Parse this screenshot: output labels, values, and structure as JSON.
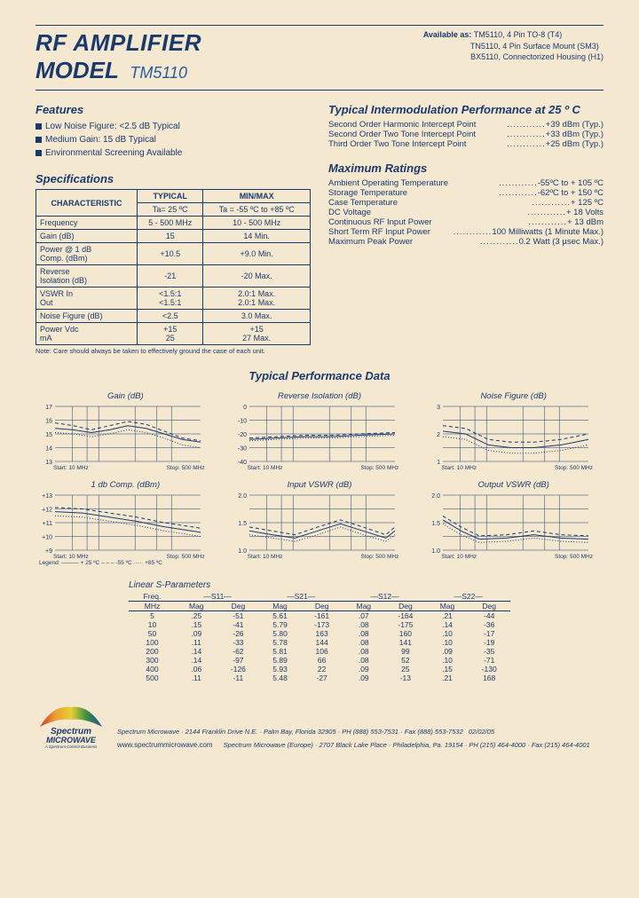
{
  "title_l1": "RF AMPLIFIER",
  "title_l2": "MODEL",
  "model": "TM5110",
  "available_label": "Available as:",
  "available": [
    "TM5110, 4 Pin TO-8 (T4)",
    "TN5110, 4 Pin Surface Mount (SM3)",
    "BX5110, Connectorized Housing (H1)"
  ],
  "features_head": "Features",
  "features": [
    "Low Noise Figure: <2.5 dB Typical",
    "Medium Gain: 15 dB Typical",
    "Environmental Screening Available"
  ],
  "specs_head": "Specifications",
  "spec_headers": [
    "CHARACTERISTIC",
    "TYPICAL",
    "MIN/MAX"
  ],
  "spec_sub": [
    "",
    "Ta= 25 ºC",
    "Ta = -55 ºC to +85 ºC"
  ],
  "spec_rows": [
    [
      "Frequency",
      "5 - 500 MHz",
      "10 - 500 MHz"
    ],
    [
      "Gain (dB)",
      "15",
      "14 Min."
    ],
    [
      "Power @ 1 dB\nComp. (dBm)",
      "+10.5",
      "+9.0 Min."
    ],
    [
      "Reverse\nIsolation (dB)",
      "-21",
      "-20 Max."
    ],
    [
      "VSWR       In\n                Out",
      "<1.5:1\n<1.5:1",
      "2.0:1 Max.\n2.0:1 Max."
    ],
    [
      "Noise Figure (dB)",
      "<2.5",
      "3.0 Max."
    ],
    [
      "Power     Vdc\n               mA",
      "+15\n25",
      "+15\n27 Max."
    ]
  ],
  "spec_note": "Note: Care should always be taken to effectively ground the case of each unit.",
  "im_head": "Typical Intermodulation Performance at 25 º C",
  "im_rows": [
    [
      "Second Order Harmonic Intercept Point",
      "+39 dBm (Typ.)"
    ],
    [
      "Second Order Two Tone Intercept Point",
      "+33 dBm (Typ.)"
    ],
    [
      "Third Order Two Tone Intercept Point",
      "+25 dBm (Typ.)"
    ]
  ],
  "max_head": "Maximum Ratings",
  "max_rows": [
    [
      "Ambient Operating Temperature",
      "-55ºC to + 105 ºC"
    ],
    [
      "Storage Temperature",
      "-62ºC to + 150 ºC"
    ],
    [
      "Case Temperature",
      "+ 125 ºC"
    ],
    [
      "DC Voltage",
      "+ 18 Volts"
    ],
    [
      "Continuous RF Input Power",
      "+ 13 dBm"
    ],
    [
      "Short Term RF Input Power",
      "100 Milliwatts (1 Minute Max.)"
    ],
    [
      "Maximum Peak Power",
      "0.2 Watt (3 µsec Max.)"
    ]
  ],
  "perf_title": "Typical Performance Data",
  "charts": [
    {
      "title": "Gain (dB)",
      "ylabels": [
        "17",
        "16",
        "15",
        "14",
        "13"
      ],
      "ymin": 13,
      "ymax": 17,
      "series": [
        {
          "dash": "0",
          "pts": [
            [
              0,
              15.4
            ],
            [
              20,
              15.3
            ],
            [
              40,
              15.1
            ],
            [
              60,
              15.3
            ],
            [
              80,
              15.6
            ],
            [
              100,
              15.4
            ],
            [
              120,
              15.0
            ],
            [
              140,
              14.6
            ],
            [
              160,
              14.4
            ]
          ]
        },
        {
          "dash": "4,3",
          "pts": [
            [
              0,
              15.8
            ],
            [
              20,
              15.6
            ],
            [
              40,
              15.3
            ],
            [
              60,
              15.6
            ],
            [
              80,
              15.9
            ],
            [
              100,
              15.7
            ],
            [
              120,
              15.2
            ],
            [
              140,
              14.7
            ],
            [
              160,
              14.5
            ]
          ]
        },
        {
          "dash": "1,2",
          "pts": [
            [
              0,
              15.1
            ],
            [
              20,
              15.0
            ],
            [
              40,
              14.8
            ],
            [
              60,
              15.0
            ],
            [
              80,
              15.3
            ],
            [
              100,
              15.1
            ],
            [
              120,
              14.7
            ],
            [
              140,
              14.2
            ],
            [
              160,
              14.0
            ]
          ]
        }
      ],
      "xstart": "Start: 10 MHz",
      "xstop": "Stop: 500 MHz"
    },
    {
      "title": "Reverse Isolation (dB)",
      "ylabels": [
        "0",
        "-10",
        "-20",
        "-30",
        "-40"
      ],
      "ymin": -40,
      "ymax": 0,
      "series": [
        {
          "dash": "0",
          "pts": [
            [
              0,
              -24
            ],
            [
              30,
              -23
            ],
            [
              60,
              -22
            ],
            [
              90,
              -22
            ],
            [
              120,
              -21
            ],
            [
              160,
              -20
            ]
          ]
        },
        {
          "dash": "4,3",
          "pts": [
            [
              0,
              -23
            ],
            [
              30,
              -22
            ],
            [
              60,
              -21
            ],
            [
              90,
              -21
            ],
            [
              120,
              -20
            ],
            [
              160,
              -19
            ]
          ]
        },
        {
          "dash": "1,2",
          "pts": [
            [
              0,
              -25
            ],
            [
              30,
              -24
            ],
            [
              60,
              -23
            ],
            [
              90,
              -23
            ],
            [
              120,
              -22
            ],
            [
              160,
              -21
            ]
          ]
        }
      ],
      "xstart": "Start: 10 MHz",
      "xstop": "Stop: 500 MHz"
    },
    {
      "title": "Noise Figure (dB)",
      "ylabels": [
        "3",
        "",
        "2",
        "",
        "1"
      ],
      "ymin": 1,
      "ymax": 3,
      "series": [
        {
          "dash": "0",
          "pts": [
            [
              0,
              2.1
            ],
            [
              25,
              2.0
            ],
            [
              50,
              1.6
            ],
            [
              75,
              1.5
            ],
            [
              100,
              1.5
            ],
            [
              130,
              1.6
            ],
            [
              160,
              1.8
            ]
          ]
        },
        {
          "dash": "4,3",
          "pts": [
            [
              0,
              2.3
            ],
            [
              25,
              2.2
            ],
            [
              50,
              1.8
            ],
            [
              75,
              1.7
            ],
            [
              100,
              1.7
            ],
            [
              130,
              1.8
            ],
            [
              160,
              2.0
            ]
          ]
        },
        {
          "dash": "1,2",
          "pts": [
            [
              0,
              1.9
            ],
            [
              25,
              1.8
            ],
            [
              50,
              1.4
            ],
            [
              75,
              1.3
            ],
            [
              100,
              1.3
            ],
            [
              130,
              1.4
            ],
            [
              160,
              1.6
            ]
          ]
        }
      ],
      "xstart": "Start: 10 MHz",
      "xstop": "Stop: 500 MHz"
    },
    {
      "title": "1 db Comp. (dBm)",
      "ylabels": [
        "+13",
        "+12",
        "+11",
        "+10",
        "+9"
      ],
      "ymin": 9,
      "ymax": 13,
      "series": [
        {
          "dash": "0",
          "pts": [
            [
              0,
              11.8
            ],
            [
              30,
              11.7
            ],
            [
              60,
              11.4
            ],
            [
              90,
              11.1
            ],
            [
              120,
              10.7
            ],
            [
              160,
              10.3
            ]
          ]
        },
        {
          "dash": "4,3",
          "pts": [
            [
              0,
              12.1
            ],
            [
              30,
              12.0
            ],
            [
              60,
              11.7
            ],
            [
              90,
              11.4
            ],
            [
              120,
              11.0
            ],
            [
              160,
              10.6
            ]
          ]
        },
        {
          "dash": "1,2",
          "pts": [
            [
              0,
              11.5
            ],
            [
              30,
              11.4
            ],
            [
              60,
              11.1
            ],
            [
              90,
              10.8
            ],
            [
              120,
              10.4
            ],
            [
              160,
              10.0
            ]
          ]
        }
      ],
      "xstart": "Start: 10 MHz",
      "xstop": "Stop: 500 MHz",
      "legend": "Legend: ——— + 25 ºC   – – – -55 ºC   ····· +85 ºC"
    },
    {
      "title": "Input VSWR (dB)",
      "ylabels": [
        "2.0",
        "",
        "1.5",
        "",
        "1.0"
      ],
      "ymin": 1.0,
      "ymax": 2.0,
      "series": [
        {
          "dash": "0",
          "pts": [
            [
              0,
              1.35
            ],
            [
              25,
              1.28
            ],
            [
              50,
              1.22
            ],
            [
              75,
              1.35
            ],
            [
              100,
              1.48
            ],
            [
              125,
              1.35
            ],
            [
              150,
              1.22
            ],
            [
              160,
              1.35
            ]
          ]
        },
        {
          "dash": "4,3",
          "pts": [
            [
              0,
              1.42
            ],
            [
              25,
              1.35
            ],
            [
              50,
              1.28
            ],
            [
              75,
              1.42
            ],
            [
              100,
              1.55
            ],
            [
              125,
              1.42
            ],
            [
              150,
              1.28
            ],
            [
              160,
              1.42
            ]
          ]
        },
        {
          "dash": "1,2",
          "pts": [
            [
              0,
              1.28
            ],
            [
              25,
              1.22
            ],
            [
              50,
              1.16
            ],
            [
              75,
              1.28
            ],
            [
              100,
              1.42
            ],
            [
              125,
              1.28
            ],
            [
              150,
              1.16
            ],
            [
              160,
              1.28
            ]
          ]
        }
      ],
      "xstart": "Start: 10 MHz",
      "xstop": "Stop: 500 MHz"
    },
    {
      "title": "Output VSWR (dB)",
      "ylabels": [
        "2.0",
        "",
        "1.5",
        "",
        "1.0"
      ],
      "ymin": 1.0,
      "ymax": 2.0,
      "series": [
        {
          "dash": "0",
          "pts": [
            [
              0,
              1.55
            ],
            [
              20,
              1.35
            ],
            [
              40,
              1.2
            ],
            [
              70,
              1.22
            ],
            [
              100,
              1.28
            ],
            [
              130,
              1.22
            ],
            [
              160,
              1.2
            ]
          ]
        },
        {
          "dash": "4,3",
          "pts": [
            [
              0,
              1.62
            ],
            [
              20,
              1.42
            ],
            [
              40,
              1.26
            ],
            [
              70,
              1.28
            ],
            [
              100,
              1.35
            ],
            [
              130,
              1.28
            ],
            [
              160,
              1.26
            ]
          ]
        },
        {
          "dash": "1,2",
          "pts": [
            [
              0,
              1.48
            ],
            [
              20,
              1.28
            ],
            [
              40,
              1.14
            ],
            [
              70,
              1.16
            ],
            [
              100,
              1.22
            ],
            [
              130,
              1.16
            ],
            [
              160,
              1.14
            ]
          ]
        }
      ],
      "xstart": "Start: 10 MHz",
      "xstop": "Stop: 500 MHz"
    }
  ],
  "sparam_title": "Linear S-Parameters",
  "sparam_groups": [
    "—S11—",
    "—S21—",
    "—S12—",
    "—S22—"
  ],
  "sparam_sub": [
    "Freq.\nMHz",
    "Mag",
    "Deg",
    "Mag",
    "Deg",
    "Mag",
    "Deg",
    "Mag",
    "Deg"
  ],
  "sparam_rows": [
    [
      "5",
      ".25",
      "-51",
      "5.61",
      "-161",
      ".07",
      "-164",
      ".21",
      "-44"
    ],
    [
      "10",
      ".15",
      "-41",
      "5.79",
      "-173",
      ".08",
      "-175",
      ".14",
      "-36"
    ],
    [
      "50",
      ".09",
      "-26",
      "5.80",
      "163",
      ".08",
      "160",
      ".10",
      "-17"
    ],
    [
      "100",
      ".11",
      "-33",
      "5.78",
      "144",
      ".08",
      "141",
      ".10",
      "-19"
    ],
    [
      "200",
      ".14",
      "-62",
      "5.81",
      "106",
      ".08",
      "99",
      ".09",
      "-35"
    ],
    [
      "300",
      ".14",
      "-97",
      "5.89",
      "66",
      ".08",
      "52",
      ".10",
      "-71"
    ],
    [
      "400",
      ".06",
      "-126",
      "5.93",
      "22",
      ".09",
      "25",
      ".15",
      "-130"
    ],
    [
      "500",
      ".11",
      "-11",
      "5.48",
      "-27",
      ".09",
      "-13",
      ".21",
      "168"
    ]
  ],
  "footer_l1": "Spectrum Microwave · 2144 Franklin Drive N.E. · Palm Bay, Florida 32905 · PH (888) 553-7531 · Fax (888) 553-7532",
  "footer_l2": "Spectrum Microwave (Europe) · 2707 Black Lake Place · Philadelphia, Pa. 19154 · PH (215) 464-4000 · Fax (215) 464-4001",
  "footer_date": "02/02/05",
  "www": "www.spectrummicrowave.com",
  "logo_top": "Spectrum",
  "logo_bot": "MICROWAVE",
  "logo_tag": "A Spectrum Control Business"
}
